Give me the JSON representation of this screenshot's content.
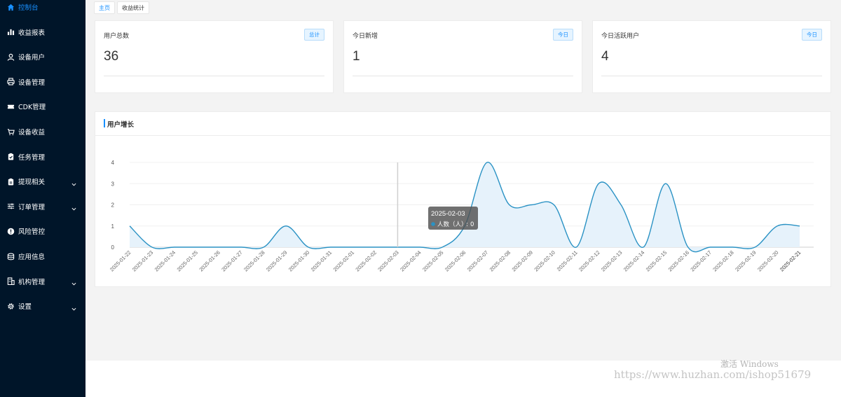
{
  "sidebar": {
    "items": [
      {
        "label": "控制台",
        "icon": "home-icon",
        "active": true,
        "expandable": false
      },
      {
        "label": "收益报表",
        "icon": "bar-chart-icon",
        "active": false,
        "expandable": false
      },
      {
        "label": "设备用户",
        "icon": "user-icon",
        "active": false,
        "expandable": false
      },
      {
        "label": "设备管理",
        "icon": "printer-icon",
        "active": false,
        "expandable": false
      },
      {
        "label": "CDK管理",
        "icon": "ticket-icon",
        "active": false,
        "expandable": false
      },
      {
        "label": "设备收益",
        "icon": "cart-icon",
        "active": false,
        "expandable": false
      },
      {
        "label": "任务管理",
        "icon": "clipboard-check-icon",
        "active": false,
        "expandable": false
      },
      {
        "label": "提现相关",
        "icon": "clipboard-icon",
        "active": false,
        "expandable": true
      },
      {
        "label": "订单管理",
        "icon": "sliders-icon",
        "active": false,
        "expandable": true
      },
      {
        "label": "风险管控",
        "icon": "alert-icon",
        "active": false,
        "expandable": false
      },
      {
        "label": "应用信息",
        "icon": "database-icon",
        "active": false,
        "expandable": false
      },
      {
        "label": "机构管理",
        "icon": "building-icon",
        "active": false,
        "expandable": true
      },
      {
        "label": "设置",
        "icon": "gear-icon",
        "active": false,
        "expandable": true
      }
    ]
  },
  "tabs": [
    {
      "label": "主页",
      "active": true
    },
    {
      "label": "收益统计",
      "active": false
    }
  ],
  "stats": [
    {
      "title": "用户总数",
      "badge": "总计",
      "value": "36"
    },
    {
      "title": "今日新增",
      "badge": "今日",
      "value": "1"
    },
    {
      "title": "今日活跃用户",
      "badge": "今日",
      "value": "4"
    }
  ],
  "growth_panel": {
    "title": "用户增长"
  },
  "chart_data": {
    "type": "area",
    "title": "",
    "xlabel": "",
    "ylabel": "",
    "ylim": [
      0,
      4
    ],
    "yticks": [
      0,
      1,
      2,
      3,
      4
    ],
    "smooth": true,
    "grid": true,
    "categories": [
      "2025-01-22",
      "2025-01-23",
      "2025-01-24",
      "2025-01-25",
      "2025-01-26",
      "2025-01-27",
      "2025-01-28",
      "2025-01-29",
      "2025-01-30",
      "2025-01-31",
      "2025-02-01",
      "2025-02-02",
      "2025-02-03",
      "2025-02-04",
      "2025-02-05",
      "2025-02-06",
      "2025-02-07",
      "2025-02-08",
      "2025-02-09",
      "2025-02-10",
      "2025-02-11",
      "2025-02-12",
      "2025-02-13",
      "2025-02-14",
      "2025-02-15",
      "2025-02-16",
      "2025-02-17",
      "2025-02-18",
      "2025-02-19",
      "2025-02-20",
      "2025-02-21"
    ],
    "series": [
      {
        "name": "人数（人）",
        "values": [
          1,
          0,
          0,
          0,
          0,
          0,
          0,
          1,
          0,
          0,
          0,
          0,
          0,
          0,
          0,
          1,
          4,
          2,
          2,
          2,
          0,
          3,
          2,
          0,
          3,
          0,
          0,
          0,
          0,
          1,
          1
        ]
      }
    ],
    "colors": {
      "line": "#2a92c4",
      "fill": "#e6f2fb"
    },
    "tooltip": {
      "title": "2025-02-03",
      "label": "人数（人）",
      "value": "0",
      "category_index": 12
    }
  },
  "watermarks": {
    "activate": "激活 Windows",
    "url": "https://www.huzhan.com/ishop51679"
  }
}
